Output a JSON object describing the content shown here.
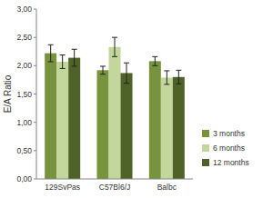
{
  "chart_data": {
    "type": "bar",
    "y_label": "E/A Ratio",
    "categories": [
      "129SvPas",
      "C57Bl6/J",
      "Balbc"
    ],
    "series": [
      {
        "name": "3 months",
        "color": "#77933c",
        "values": [
          2.22,
          1.92,
          2.08
        ],
        "errors": [
          0.15,
          0.07,
          0.08
        ]
      },
      {
        "name": "6 months",
        "color": "#c3d69b",
        "values": [
          2.07,
          2.33,
          1.79
        ],
        "errors": [
          0.12,
          0.17,
          0.12
        ]
      },
      {
        "name": "12 months",
        "color": "#4f6228",
        "values": [
          2.14,
          1.87,
          1.8
        ],
        "errors": [
          0.15,
          0.18,
          0.12
        ]
      }
    ],
    "ylim": [
      0,
      3
    ],
    "yticks": [
      {
        "value": 0,
        "label": "0,00"
      },
      {
        "value": 0.5,
        "label": "0,50"
      },
      {
        "value": 1,
        "label": "1,00"
      },
      {
        "value": 1.5,
        "label": "1,50"
      },
      {
        "value": 2,
        "label": "2,00"
      },
      {
        "value": 2.5,
        "label": "2,50"
      },
      {
        "value": 3,
        "label": "3,00"
      }
    ],
    "grid": false,
    "legend": "right"
  }
}
